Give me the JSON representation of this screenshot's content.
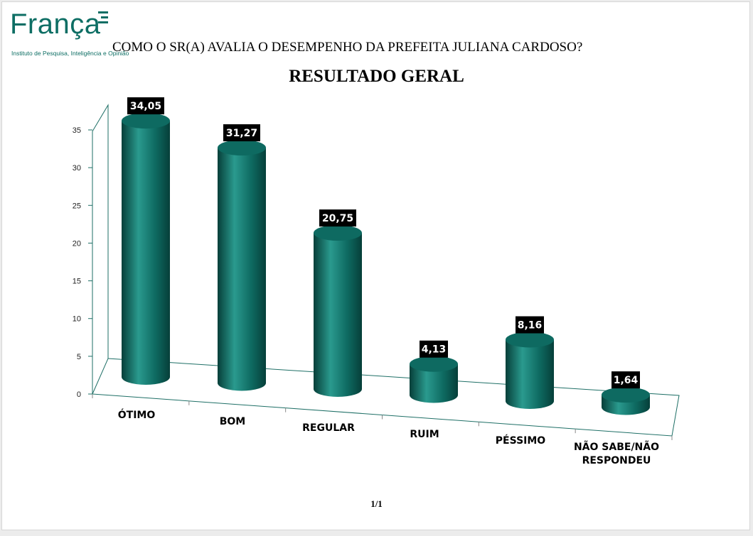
{
  "logo": {
    "word": "França",
    "subtitle": "Instituto de Pesquisa, Inteligência e Opinião"
  },
  "header": {
    "question": "COMO O SR(A) AVALIA O DESEMPENHO DA PREFEITA JULIANA CARDOSO?",
    "subtitle": "RESULTADO GERAL"
  },
  "footer": {
    "page": "1/1"
  },
  "colors": {
    "bar": "#0e6a61",
    "bar_light": "#2a9a8e",
    "bar_dark": "#063f39",
    "label_bg": "#000000",
    "axis": "#1e6f66"
  },
  "chart_data": {
    "type": "bar",
    "categories": [
      "ÓTIMO",
      "BOM",
      "REGULAR",
      "RUIM",
      "PÉSSIMO",
      "NÃO SABE/NÃO RESPONDEU"
    ],
    "category_lines": [
      [
        "ÓTIMO"
      ],
      [
        "BOM"
      ],
      [
        "REGULAR"
      ],
      [
        "RUIM"
      ],
      [
        "PÉSSIMO"
      ],
      [
        "NÃO SABE/NÃO",
        "RESPONDEU"
      ]
    ],
    "values": [
      34.05,
      31.27,
      20.75,
      4.13,
      8.16,
      1.64
    ],
    "data_labels": [
      "34,05",
      "31,27",
      "20,75",
      "4,13",
      "8,16",
      "1,64"
    ],
    "yticks": [
      "0",
      "5",
      "10",
      "15",
      "20",
      "25",
      "30",
      "35"
    ],
    "ylim": [
      0,
      35
    ],
    "grid": false,
    "style": "3d-cylinder"
  }
}
